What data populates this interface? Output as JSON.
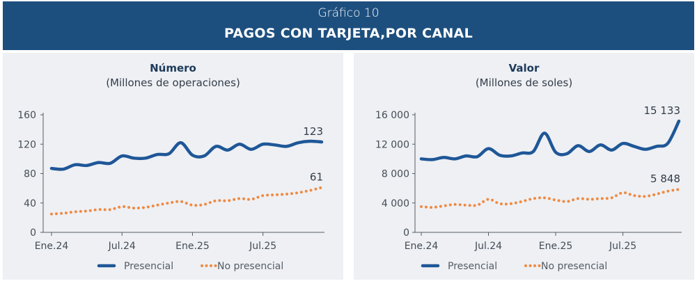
{
  "header": {
    "supertitle": "Gráfico 10",
    "title": "PAGOS CON TARJETA,POR CANAL"
  },
  "colors": {
    "header_bg": "#1d4f7e",
    "presencial": "#1f5797",
    "no_presencial": "#ef8a42",
    "panel_bg": "#eef0f4"
  },
  "legend": {
    "presencial": "Presencial",
    "no_presencial": "No presencial"
  },
  "chart_data": [
    {
      "type": "line",
      "title": "Número",
      "subtitle": "(Millones de operaciones)",
      "ylim": [
        0,
        160
      ],
      "yticks": [
        0,
        40,
        80,
        120,
        160
      ],
      "ytick_labels": [
        "0",
        "40",
        "80",
        "120",
        "160"
      ],
      "xtick_labels": [
        "Ene.24",
        "Jul.24",
        "Ene.25",
        "Jul.25"
      ],
      "xtick_index": [
        0,
        6,
        12,
        18
      ],
      "grid": false,
      "legend_position": "bottom",
      "series": [
        {
          "name": "Presencial",
          "style": "solid",
          "values": [
            87,
            86,
            92,
            91,
            95,
            94,
            104,
            101,
            101,
            106,
            107,
            122,
            105,
            104,
            117,
            112,
            120,
            113,
            120,
            119,
            117,
            122,
            124,
            123
          ],
          "end_label": "123"
        },
        {
          "name": "No presencial",
          "style": "dotted",
          "values": [
            25,
            26,
            28,
            29,
            31,
            31,
            35,
            33,
            34,
            37,
            40,
            42,
            37,
            38,
            43,
            43,
            46,
            45,
            50,
            51,
            52,
            54,
            57,
            61
          ],
          "end_label": "61"
        }
      ]
    },
    {
      "type": "line",
      "title": "Valor",
      "subtitle": "(Millones de soles)",
      "ylim": [
        0,
        16000
      ],
      "yticks": [
        0,
        4000,
        8000,
        12000,
        16000
      ],
      "ytick_labels": [
        "0",
        "4 000",
        "8 000",
        "12 000",
        "16 000"
      ],
      "xtick_labels": [
        "Ene.24",
        "Jul.24",
        "Ene.25",
        "Jul.25"
      ],
      "xtick_index": [
        0,
        6,
        12,
        18
      ],
      "grid": false,
      "legend_position": "bottom",
      "series": [
        {
          "name": "Presencial",
          "style": "solid",
          "values": [
            10000,
            9900,
            10200,
            10000,
            10400,
            10300,
            11400,
            10500,
            10400,
            10800,
            11000,
            13500,
            10900,
            10700,
            11800,
            11000,
            11900,
            11200,
            12100,
            11700,
            11300,
            11700,
            12100,
            15133
          ],
          "end_label": "15 133"
        },
        {
          "name": "No presencial",
          "style": "dotted",
          "values": [
            3500,
            3400,
            3600,
            3800,
            3700,
            3700,
            4500,
            3900,
            3900,
            4200,
            4600,
            4700,
            4400,
            4200,
            4600,
            4500,
            4600,
            4700,
            5400,
            5000,
            4900,
            5200,
            5600,
            5848
          ],
          "end_label": "5 848"
        }
      ]
    }
  ]
}
